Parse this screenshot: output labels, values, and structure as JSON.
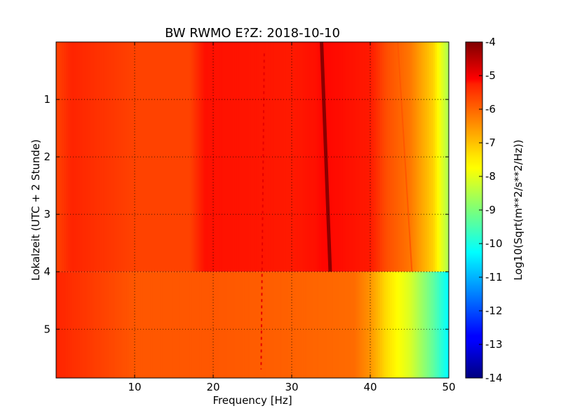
{
  "chart_data": {
    "type": "heatmap",
    "title": "BW RWMO E?Z: 2018-10-10",
    "xlabel": "Frequency [Hz]",
    "ylabel": "Lokalzeit (UTC + 2 Stunde)",
    "colorbar_label": "Log10(Sqrt(m**2/s**2/Hz))",
    "xlim": [
      0,
      50
    ],
    "ylim": [
      5.85,
      0
    ],
    "x_ticks": [
      "10",
      "20",
      "30",
      "40",
      "50"
    ],
    "y_ticks": [
      "1",
      "2",
      "3",
      "4",
      "5"
    ],
    "x_tick_values": [
      10,
      20,
      30,
      40,
      50
    ],
    "y_tick_values": [
      1,
      2,
      3,
      4,
      5
    ],
    "colorbar_range": [
      -14,
      -4
    ],
    "colorbar_ticks": [
      "-4",
      "-5",
      "-6",
      "-7",
      "-8",
      "-9",
      "-10",
      "-11",
      "-12",
      "-13",
      "-14"
    ],
    "colorbar_tick_values": [
      -4,
      -5,
      -6,
      -7,
      -8,
      -9,
      -10,
      -11,
      -12,
      -13,
      -14
    ],
    "colormap": "jet",
    "grid": true,
    "time_segments": [
      {
        "t_start": 0,
        "t_end": 4.0,
        "spectrum": [
          [
            0,
            -5.9
          ],
          [
            2,
            -5.6
          ],
          [
            10,
            -5.9
          ],
          [
            17,
            -5.9
          ],
          [
            19,
            -5.4
          ],
          [
            30,
            -5.5
          ],
          [
            33,
            -5.4
          ],
          [
            34,
            -5.3
          ],
          [
            40,
            -5.5
          ],
          [
            42,
            -6.0
          ],
          [
            45,
            -6.4
          ],
          [
            48,
            -7.3
          ],
          [
            50,
            -8.6
          ]
        ]
      },
      {
        "t_start": 4.0,
        "t_end": 5.85,
        "spectrum": [
          [
            0,
            -5.6
          ],
          [
            2,
            -5.7
          ],
          [
            10,
            -6.1
          ],
          [
            20,
            -6.1
          ],
          [
            30,
            -6.2
          ],
          [
            38,
            -6.3
          ],
          [
            40,
            -6.7
          ],
          [
            42,
            -7.4
          ],
          [
            45,
            -8.1
          ],
          [
            48,
            -9.3
          ],
          [
            50,
            -10.3
          ]
        ]
      }
    ],
    "features": [
      {
        "kind": "tonal_line",
        "f_start": 33.8,
        "f_end": 34.9,
        "t_start": 0,
        "t_end": 4.0,
        "level": -4.1
      },
      {
        "kind": "tonal_line",
        "f_start": 43.5,
        "f_end": 45.3,
        "t_start": 0,
        "t_end": 4.0,
        "level": -6.1
      },
      {
        "kind": "tonal_line",
        "f_start": 26.5,
        "f_end": 26.1,
        "t_start": 0.2,
        "t_end": 5.7,
        "level": -5.0
      }
    ]
  }
}
